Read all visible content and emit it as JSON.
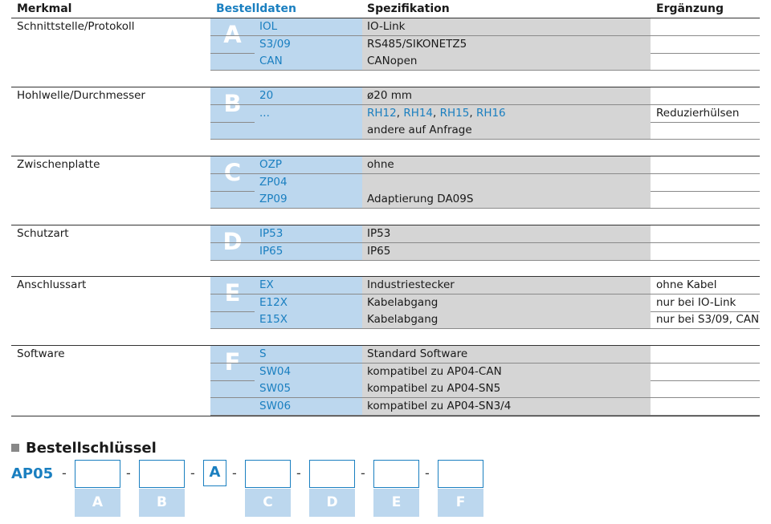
{
  "headers": {
    "merkmal": "Merkmal",
    "bestelldaten": "Bestelldaten",
    "spezifikation": "Spezifikation",
    "ergaenzung": "Ergänzung"
  },
  "sections": [
    {
      "merkmal": "Schnittstelle/Protokoll",
      "letter": "A",
      "rows": [
        {
          "code": "IOL",
          "spec": "IO-Link",
          "erg": ""
        },
        {
          "code": "S3/09",
          "spec": "RS485/SIKONETZ5",
          "erg": ""
        },
        {
          "code": "CAN",
          "spec": "CANopen",
          "erg": ""
        }
      ]
    },
    {
      "merkmal": "Hohlwelle/Durchmesser",
      "letter": "B",
      "rows": [
        {
          "code": "20",
          "spec": "ø20 mm",
          "erg": ""
        },
        {
          "code": "...",
          "spec": "",
          "spec_parts": [
            "RH12",
            "RH14",
            "RH15",
            "RH16"
          ],
          "spec_sep": ", ",
          "erg": "Reduzierhülsen"
        },
        {
          "code": "",
          "spec": "andere auf Anfrage",
          "erg": ""
        }
      ]
    },
    {
      "merkmal": "Zwischenplatte",
      "letter": "C",
      "rows": [
        {
          "code": "OZP",
          "spec": "ohne",
          "erg": ""
        },
        {
          "code": "ZP04",
          "spec": "",
          "erg": ""
        },
        {
          "code": "ZP09",
          "spec": "Adaptierung DA09S",
          "erg": ""
        }
      ]
    },
    {
      "merkmal": "Schutzart",
      "letter": "D",
      "rows": [
        {
          "code": "IP53",
          "spec": "IP53",
          "erg": ""
        },
        {
          "code": "IP65",
          "spec": "IP65",
          "erg": ""
        }
      ]
    },
    {
      "merkmal": "Anschlussart",
      "letter": "E",
      "rows": [
        {
          "code": "EX",
          "spec": "Industriestecker",
          "erg": "ohne Kabel"
        },
        {
          "code": "E12X",
          "spec": "Kabelabgang",
          "erg": "nur bei IO-Link"
        },
        {
          "code": "E15X",
          "spec": "Kabelabgang",
          "erg": "nur bei S3/09, CAN"
        }
      ]
    },
    {
      "merkmal": "Software",
      "letter": "F",
      "rows": [
        {
          "code": "S",
          "spec": "Standard Software",
          "erg": ""
        },
        {
          "code": "SW04",
          "spec": "kompatibel zu AP04-CAN",
          "erg": ""
        },
        {
          "code": "SW05",
          "spec": "kompatibel zu AP04-SN5",
          "erg": ""
        },
        {
          "code": "SW06",
          "spec": "kompatibel zu AP04-SN3/4",
          "erg": ""
        }
      ]
    }
  ],
  "order_key": {
    "title": "Bestellschlüssel",
    "prefix": "AP05",
    "separator": "-",
    "fixed_field": "A",
    "field_labels": [
      "A",
      "B",
      "C",
      "D",
      "E",
      "F"
    ]
  },
  "colors": {
    "accent_blue": "#1a7fc0",
    "light_blue": "#bcd7ee",
    "spec_gray": "#d5d5d5"
  }
}
